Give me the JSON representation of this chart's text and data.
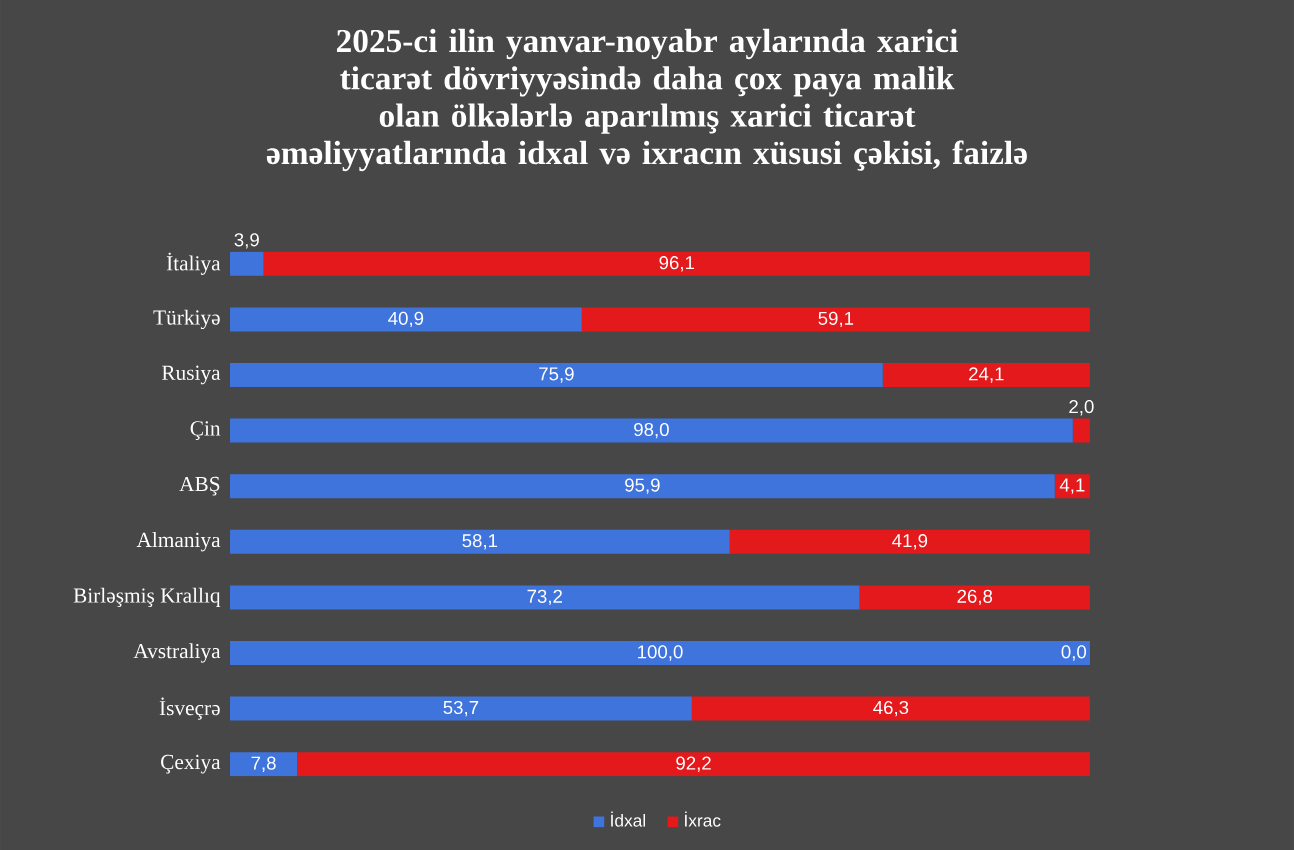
{
  "chart_data": {
    "type": "bar",
    "orientation": "horizontal",
    "stacked": true,
    "title": "2025-ci ilin yanvar-noyabr aylarında xarici ticarət dövriyyəsində daha çox paya malik olan ölkələrlə aparılmış xarici ticarət əməliyyatlarında idxal və ixracın xüsusi çəkisi, faizlə",
    "categories": [
      "İtaliya",
      "Türkiyə",
      "Rusiya",
      "Çin",
      "ABŞ",
      "Almaniya",
      "Birləşmiş Krallıq",
      "Avstraliya",
      "İsveçrə",
      "Çexiya"
    ],
    "series": [
      {
        "name": "İdxal",
        "color": "#3f74dc",
        "values": [
          3.9,
          40.9,
          75.9,
          98.0,
          95.9,
          58.1,
          73.2,
          100.0,
          53.7,
          7.8
        ],
        "value_labels": [
          "3,9",
          "40,9",
          "75,9",
          "98,0",
          "95,9",
          "58,1",
          "73,2",
          "100,0",
          "53,7",
          "7,8"
        ]
      },
      {
        "name": "İxrac",
        "color": "#e3191c",
        "values": [
          96.1,
          59.1,
          24.1,
          2.0,
          4.1,
          41.9,
          26.8,
          0.0,
          46.3,
          92.2
        ],
        "value_labels": [
          "96,1",
          "59,1",
          "24,1",
          "2,0",
          "4,1",
          "41,9",
          "26,8",
          "0,0",
          "46,3",
          "92,2"
        ]
      }
    ],
    "xlim": [
      0,
      100
    ],
    "tick_labels": "y",
    "legend": "bottom"
  }
}
